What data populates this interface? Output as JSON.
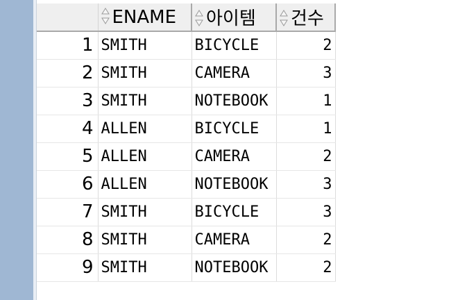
{
  "table": {
    "columns": [
      "ENAME",
      "아이템",
      "건수"
    ],
    "rows": [
      {
        "n": "1",
        "ename": "SMITH",
        "item": "BICYCLE",
        "count": "2"
      },
      {
        "n": "2",
        "ename": "SMITH",
        "item": "CAMERA",
        "count": "3"
      },
      {
        "n": "3",
        "ename": "SMITH",
        "item": "NOTEBOOK",
        "count": "1"
      },
      {
        "n": "4",
        "ename": "ALLEN",
        "item": "BICYCLE",
        "count": "1"
      },
      {
        "n": "5",
        "ename": "ALLEN",
        "item": "CAMERA",
        "count": "2"
      },
      {
        "n": "6",
        "ename": "ALLEN",
        "item": "NOTEBOOK",
        "count": "3"
      },
      {
        "n": "7",
        "ename": "SMITH",
        "item": "BICYCLE",
        "count": "3"
      },
      {
        "n": "8",
        "ename": "SMITH",
        "item": "CAMERA",
        "count": "2"
      },
      {
        "n": "9",
        "ename": "SMITH",
        "item": "NOTEBOOK",
        "count": "2"
      }
    ]
  },
  "colors": {
    "side_panel": "#9fb7d3",
    "header_bg": "#efefef"
  }
}
